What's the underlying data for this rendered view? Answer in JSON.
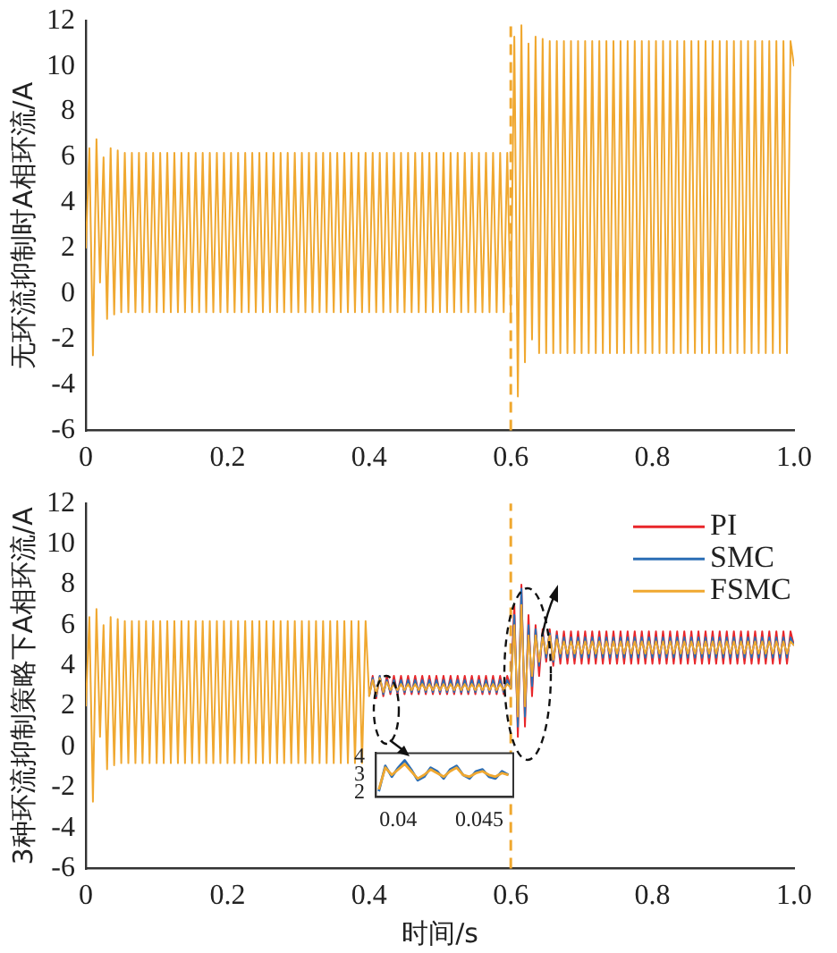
{
  "chart_data": [
    {
      "type": "line",
      "ylabel": "无环流抑制时A相环流/A",
      "xlim": [
        0,
        1
      ],
      "ylim": [
        -6,
        12
      ],
      "xticks": [
        0,
        0.2,
        0.4,
        0.6,
        0.8,
        {
          "value": 1,
          "label": "1.0"
        }
      ],
      "yticks": [
        -6,
        -4,
        -2,
        0,
        2,
        4,
        6,
        8,
        10,
        12
      ],
      "grid": false,
      "marker": "none",
      "line_style": "solid",
      "ref_lines": [
        {
          "axis": "x",
          "value": 0.6,
          "color": "#f0a830",
          "line_style": "dashed"
        }
      ],
      "x": [
        0,
        0.005,
        0.01,
        0.015,
        0.02,
        0.025,
        0.03,
        0.035,
        0.04,
        0.045,
        0.05,
        0.055,
        0.06,
        0.065,
        0.07,
        0.075,
        0.08,
        0.085,
        0.09,
        0.095,
        0.1,
        0.105,
        0.11,
        0.115,
        0.12,
        0.125,
        0.13,
        0.135,
        0.14,
        0.145,
        0.15,
        0.155,
        0.16,
        0.165,
        0.17,
        0.175,
        0.18,
        0.185,
        0.19,
        0.195,
        0.2,
        0.205,
        0.21,
        0.215,
        0.22,
        0.225,
        0.23,
        0.235,
        0.24,
        0.245,
        0.25,
        0.255,
        0.26,
        0.265,
        0.27,
        0.275,
        0.28,
        0.285,
        0.29,
        0.295,
        0.3,
        0.305,
        0.31,
        0.315,
        0.32,
        0.325,
        0.33,
        0.335,
        0.34,
        0.345,
        0.35,
        0.355,
        0.36,
        0.365,
        0.37,
        0.375,
        0.38,
        0.385,
        0.39,
        0.395,
        0.4,
        0.405,
        0.41,
        0.415,
        0.42,
        0.425,
        0.43,
        0.435,
        0.44,
        0.445,
        0.45,
        0.455,
        0.46,
        0.465,
        0.47,
        0.475,
        0.48,
        0.485,
        0.49,
        0.495,
        0.5,
        0.505,
        0.51,
        0.515,
        0.52,
        0.525,
        0.53,
        0.535,
        0.54,
        0.545,
        0.55,
        0.555,
        0.56,
        0.565,
        0.57,
        0.575,
        0.58,
        0.585,
        0.59,
        0.595,
        0.6,
        0.605,
        0.61,
        0.615,
        0.62,
        0.625,
        0.63,
        0.635,
        0.64,
        0.645,
        0.65,
        0.655,
        0.66,
        0.665,
        0.67,
        0.675,
        0.68,
        0.685,
        0.69,
        0.695,
        0.7,
        0.705,
        0.71,
        0.715,
        0.72,
        0.725,
        0.73,
        0.735,
        0.74,
        0.745,
        0.75,
        0.755,
        0.76,
        0.765,
        0.77,
        0.775,
        0.78,
        0.785,
        0.79,
        0.795,
        0.8,
        0.805,
        0.81,
        0.815,
        0.82,
        0.825,
        0.83,
        0.835,
        0.84,
        0.845,
        0.85,
        0.855,
        0.86,
        0.865,
        0.87,
        0.875,
        0.88,
        0.885,
        0.89,
        0.895,
        0.9,
        0.905,
        0.91,
        0.915,
        0.92,
        0.925,
        0.93,
        0.935,
        0.94,
        0.945,
        0.95,
        0.955,
        0.96,
        0.965,
        0.97,
        0.975,
        0.98,
        0.985,
        0.99,
        0.995,
        1
      ],
      "series": [
        {
          "color": "#f0a830",
          "values": [
            2.0,
            6.4,
            -2.7,
            6.8,
            0.5,
            6.0,
            -1.1,
            6.4,
            -0.9,
            6.3,
            -0.8,
            6.2,
            -0.8,
            6.2,
            -0.8,
            6.2,
            -0.8,
            6.2,
            -0.8,
            6.2,
            -0.8,
            6.2,
            -0.8,
            6.2,
            -0.8,
            6.2,
            -0.8,
            6.2,
            -0.8,
            6.2,
            -0.8,
            6.2,
            -0.8,
            6.2,
            -0.8,
            6.2,
            -0.8,
            6.2,
            -0.8,
            6.2,
            -0.8,
            6.2,
            -0.8,
            6.2,
            -0.8,
            6.2,
            -0.8,
            6.2,
            -0.8,
            6.2,
            -0.8,
            6.2,
            -0.8,
            6.2,
            -0.8,
            6.2,
            -0.8,
            6.2,
            -0.8,
            6.2,
            -0.8,
            6.2,
            -0.8,
            6.2,
            -0.8,
            6.2,
            -0.8,
            6.2,
            -0.8,
            6.2,
            -0.8,
            6.2,
            -0.8,
            6.2,
            -0.8,
            6.2,
            -0.8,
            6.2,
            -0.8,
            6.2,
            -0.8,
            6.2,
            -0.8,
            6.2,
            -0.8,
            6.2,
            -0.8,
            6.2,
            -0.8,
            6.2,
            -0.8,
            6.2,
            -0.8,
            6.2,
            -0.8,
            6.2,
            -0.8,
            6.2,
            -0.8,
            6.2,
            -0.8,
            6.2,
            -0.8,
            6.2,
            -0.8,
            6.2,
            -0.8,
            6.2,
            -0.8,
            6.2,
            -0.8,
            6.2,
            -0.8,
            6.2,
            -0.8,
            6.2,
            -0.8,
            6.2,
            -0.8,
            6.2,
            -0.8,
            11.3,
            -4.5,
            11.8,
            -3.0,
            11.0,
            -2.0,
            11.3,
            -2.6,
            11.2,
            -2.6,
            11.1,
            -2.6,
            11.1,
            -2.6,
            11.1,
            -2.6,
            11.1,
            -2.6,
            11.1,
            -2.6,
            11.1,
            -2.6,
            11.1,
            -2.6,
            11.1,
            -2.6,
            11.1,
            -2.6,
            11.1,
            -2.6,
            11.1,
            -2.6,
            11.1,
            -2.6,
            11.1,
            -2.6,
            11.1,
            -2.6,
            11.1,
            -2.6,
            11.1,
            -2.6,
            11.1,
            -2.6,
            11.1,
            -2.6,
            11.1,
            -2.6,
            11.1,
            -2.6,
            11.1,
            -2.6,
            11.1,
            -2.6,
            11.1,
            -2.6,
            11.1,
            -2.6,
            11.1,
            -2.6,
            11.1,
            -2.6,
            11.1,
            -2.6,
            11.1,
            -2.6,
            11.1,
            -2.6,
            11.1,
            -2.6,
            11.1,
            -2.6,
            11.1,
            -2.6,
            11.1,
            -2.6,
            11.1,
            -2.6,
            11.1,
            10.0
          ]
        }
      ]
    },
    {
      "type": "line",
      "xlabel": "时间/s",
      "ylabel": "3种环流抑制策略下A相环流/A",
      "xlim": [
        0,
        1
      ],
      "ylim": [
        -6,
        12
      ],
      "xticks": [
        0,
        0.2,
        0.4,
        0.6,
        0.8,
        {
          "value": 1,
          "label": "1.0"
        }
      ],
      "yticks": [
        -6,
        -4,
        -2,
        0,
        2,
        4,
        6,
        8,
        10,
        12
      ],
      "grid": false,
      "marker": "none",
      "line_style": "solid",
      "legend": "top right",
      "ref_lines": [
        {
          "axis": "x",
          "value": 0.6,
          "color": "#f0a830",
          "line_style": "dashed"
        }
      ],
      "x": [
        0,
        0.005,
        0.01,
        0.015,
        0.02,
        0.025,
        0.03,
        0.035,
        0.04,
        0.045,
        0.05,
        0.055,
        0.06,
        0.065,
        0.07,
        0.075,
        0.08,
        0.085,
        0.09,
        0.095,
        0.1,
        0.105,
        0.11,
        0.115,
        0.12,
        0.125,
        0.13,
        0.135,
        0.14,
        0.145,
        0.15,
        0.155,
        0.16,
        0.165,
        0.17,
        0.175,
        0.18,
        0.185,
        0.19,
        0.195,
        0.2,
        0.205,
        0.21,
        0.215,
        0.22,
        0.225,
        0.23,
        0.235,
        0.24,
        0.245,
        0.25,
        0.255,
        0.26,
        0.265,
        0.27,
        0.275,
        0.28,
        0.285,
        0.29,
        0.295,
        0.3,
        0.305,
        0.31,
        0.315,
        0.32,
        0.325,
        0.33,
        0.335,
        0.34,
        0.345,
        0.35,
        0.355,
        0.36,
        0.365,
        0.37,
        0.375,
        0.38,
        0.385,
        0.39,
        0.395,
        0.4,
        0.405,
        0.41,
        0.415,
        0.42,
        0.425,
        0.43,
        0.435,
        0.44,
        0.445,
        0.45,
        0.455,
        0.46,
        0.465,
        0.47,
        0.475,
        0.48,
        0.485,
        0.49,
        0.495,
        0.5,
        0.505,
        0.51,
        0.515,
        0.52,
        0.525,
        0.53,
        0.535,
        0.54,
        0.545,
        0.55,
        0.555,
        0.56,
        0.565,
        0.57,
        0.575,
        0.58,
        0.585,
        0.59,
        0.595,
        0.6,
        0.605,
        0.61,
        0.615,
        0.62,
        0.625,
        0.63,
        0.635,
        0.64,
        0.645,
        0.65,
        0.655,
        0.66,
        0.665,
        0.67,
        0.675,
        0.68,
        0.685,
        0.69,
        0.695,
        0.7,
        0.705,
        0.71,
        0.715,
        0.72,
        0.725,
        0.73,
        0.735,
        0.74,
        0.745,
        0.75,
        0.755,
        0.76,
        0.765,
        0.77,
        0.775,
        0.78,
        0.785,
        0.79,
        0.795,
        0.8,
        0.805,
        0.81,
        0.815,
        0.82,
        0.825,
        0.83,
        0.835,
        0.84,
        0.845,
        0.85,
        0.855,
        0.86,
        0.865,
        0.87,
        0.875,
        0.88,
        0.885,
        0.89,
        0.895,
        0.9,
        0.905,
        0.91,
        0.915,
        0.92,
        0.925,
        0.93,
        0.935,
        0.94,
        0.945,
        0.95,
        0.955,
        0.96,
        0.965,
        0.97,
        0.975,
        0.98,
        0.985,
        0.99,
        0.995,
        1
      ],
      "series": [
        {
          "name": "PI",
          "color": "#e8262a",
          "values": [
            null,
            null,
            null,
            null,
            null,
            null,
            null,
            null,
            null,
            null,
            null,
            null,
            null,
            null,
            null,
            null,
            null,
            null,
            null,
            null,
            null,
            null,
            null,
            null,
            null,
            null,
            null,
            null,
            null,
            null,
            null,
            null,
            null,
            null,
            null,
            null,
            null,
            null,
            null,
            null,
            null,
            null,
            null,
            null,
            null,
            null,
            null,
            null,
            null,
            null,
            null,
            null,
            null,
            null,
            null,
            null,
            null,
            null,
            null,
            null,
            null,
            null,
            null,
            null,
            null,
            null,
            null,
            null,
            null,
            null,
            null,
            null,
            null,
            null,
            null,
            null,
            null,
            null,
            null,
            null,
            2.5,
            3.5,
            2.4,
            3.5,
            2.5,
            3.5,
            2.6,
            3.5,
            2.6,
            3.5,
            2.6,
            3.5,
            2.6,
            3.5,
            2.6,
            3.5,
            2.6,
            3.5,
            2.6,
            3.5,
            2.6,
            3.5,
            2.6,
            3.5,
            2.6,
            3.5,
            2.6,
            3.5,
            2.6,
            3.5,
            2.6,
            3.5,
            2.6,
            3.5,
            2.6,
            3.5,
            2.6,
            3.5,
            2.6,
            3.5,
            2.9,
            7.0,
            0.5,
            8.0,
            1.0,
            6.5,
            2.5,
            6.0,
            3.5,
            5.8,
            4.2,
            5.8,
            4.0,
            5.7,
            4.1,
            5.7,
            4.1,
            5.7,
            4.1,
            5.7,
            4.1,
            5.7,
            4.1,
            5.7,
            4.1,
            5.7,
            4.1,
            5.7,
            4.1,
            5.7,
            4.1,
            5.7,
            4.1,
            5.7,
            4.1,
            5.7,
            4.1,
            5.7,
            4.1,
            5.7,
            4.1,
            5.7,
            4.1,
            5.7,
            4.1,
            5.7,
            4.1,
            5.7,
            4.1,
            5.7,
            4.1,
            5.7,
            4.1,
            5.7,
            4.1,
            5.7,
            4.1,
            5.7,
            4.1,
            5.7,
            4.1,
            5.7,
            4.1,
            5.7,
            4.1,
            5.7,
            4.1,
            5.7,
            4.1,
            5.7,
            4.1,
            5.7,
            4.1,
            5.7,
            4.1,
            5.7,
            4.1,
            5.7,
            4.1,
            5.7,
            5.0
          ]
        },
        {
          "name": "SMC",
          "color": "#2a6db5",
          "values": [
            null,
            null,
            null,
            null,
            null,
            null,
            null,
            null,
            null,
            null,
            null,
            null,
            null,
            null,
            null,
            null,
            null,
            null,
            null,
            null,
            null,
            null,
            null,
            null,
            null,
            null,
            null,
            null,
            null,
            null,
            null,
            null,
            null,
            null,
            null,
            null,
            null,
            null,
            null,
            null,
            null,
            null,
            null,
            null,
            null,
            null,
            null,
            null,
            null,
            null,
            null,
            null,
            null,
            null,
            null,
            null,
            null,
            null,
            null,
            null,
            null,
            null,
            null,
            null,
            null,
            null,
            null,
            null,
            null,
            null,
            null,
            null,
            null,
            null,
            null,
            null,
            null,
            null,
            null,
            null,
            2.5,
            3.4,
            2.5,
            3.5,
            2.6,
            3.3,
            2.7,
            3.3,
            2.7,
            3.3,
            2.7,
            3.3,
            2.7,
            3.3,
            2.7,
            3.3,
            2.7,
            3.3,
            2.7,
            3.3,
            2.7,
            3.3,
            2.7,
            3.3,
            2.7,
            3.3,
            2.7,
            3.3,
            2.7,
            3.3,
            2.7,
            3.3,
            2.7,
            3.3,
            2.7,
            3.3,
            2.7,
            3.3,
            2.7,
            3.3,
            2.9,
            6.5,
            1.0,
            7.8,
            1.5,
            6.0,
            3.0,
            5.8,
            4.0,
            5.6,
            4.4,
            5.6,
            4.2,
            5.5,
            4.4,
            5.4,
            4.4,
            5.4,
            4.4,
            5.4,
            4.4,
            5.4,
            4.4,
            5.4,
            4.4,
            5.4,
            4.4,
            5.4,
            4.4,
            5.4,
            4.4,
            5.4,
            4.4,
            5.4,
            4.4,
            5.4,
            4.4,
            5.4,
            4.4,
            5.4,
            4.4,
            5.4,
            4.4,
            5.4,
            4.4,
            5.4,
            4.4,
            5.4,
            4.4,
            5.4,
            4.4,
            5.4,
            4.4,
            5.4,
            4.4,
            5.4,
            4.4,
            5.4,
            4.4,
            5.4,
            4.4,
            5.4,
            4.4,
            5.4,
            4.4,
            5.4,
            4.4,
            5.4,
            4.4,
            5.4,
            4.4,
            5.4,
            4.4,
            5.4,
            4.4,
            5.4,
            4.4,
            5.4,
            4.4,
            5.4,
            5.0
          ]
        },
        {
          "name": "FSMC",
          "color": "#f0a830",
          "values": [
            2.0,
            6.4,
            -2.7,
            6.8,
            0.5,
            6.0,
            -1.1,
            6.4,
            -0.9,
            6.3,
            -0.8,
            6.2,
            -0.8,
            6.2,
            -0.8,
            6.2,
            -0.8,
            6.2,
            -0.8,
            6.2,
            -0.8,
            6.2,
            -0.8,
            6.2,
            -0.8,
            6.2,
            -0.8,
            6.2,
            -0.8,
            6.2,
            -0.8,
            6.2,
            -0.8,
            6.2,
            -0.8,
            6.2,
            -0.8,
            6.2,
            -0.8,
            6.2,
            -0.8,
            6.2,
            -0.8,
            6.2,
            -0.8,
            6.2,
            -0.8,
            6.2,
            -0.8,
            6.2,
            -0.8,
            6.2,
            -0.8,
            6.2,
            -0.8,
            6.2,
            -0.8,
            6.2,
            -0.8,
            6.2,
            -0.8,
            6.2,
            -0.8,
            6.2,
            -0.8,
            6.2,
            -0.8,
            6.2,
            -0.8,
            6.2,
            -0.8,
            6.2,
            -0.8,
            6.2,
            -0.8,
            6.2,
            -0.8,
            6.2,
            -0.8,
            6.2,
            2.5,
            3.3,
            2.6,
            3.4,
            2.7,
            3.2,
            2.8,
            3.1,
            2.8,
            3.1,
            2.8,
            3.1,
            2.8,
            3.1,
            2.8,
            3.1,
            2.8,
            3.1,
            2.8,
            3.1,
            2.8,
            3.1,
            2.8,
            3.1,
            2.8,
            3.1,
            2.8,
            3.1,
            2.8,
            3.1,
            2.8,
            3.1,
            2.8,
            3.1,
            2.8,
            3.1,
            2.8,
            3.1,
            2.8,
            3.1,
            2.9,
            6.0,
            1.5,
            7.0,
            2.0,
            5.5,
            3.5,
            5.5,
            4.2,
            5.4,
            4.6,
            5.5,
            4.3,
            5.3,
            4.6,
            5.2,
            4.6,
            5.2,
            4.6,
            5.2,
            4.6,
            5.2,
            4.6,
            5.2,
            4.6,
            5.2,
            4.6,
            5.2,
            4.6,
            5.2,
            4.6,
            5.2,
            4.6,
            5.2,
            4.6,
            5.2,
            4.6,
            5.2,
            4.6,
            5.2,
            4.6,
            5.2,
            4.6,
            5.2,
            4.6,
            5.2,
            4.6,
            5.2,
            4.6,
            5.2,
            4.6,
            5.2,
            4.6,
            5.2,
            4.6,
            5.2,
            4.6,
            5.2,
            4.6,
            5.2,
            4.6,
            5.2,
            4.6,
            5.2,
            4.6,
            5.2,
            4.6,
            5.2,
            4.6,
            5.2,
            4.6,
            5.2,
            4.6,
            5.2,
            4.6,
            5.2,
            4.6,
            5.2,
            4.6,
            5.2,
            5.0
          ]
        }
      ]
    },
    {
      "type": "line",
      "xlim": [
        0.0386,
        0.0471
      ],
      "ylim": [
        1.8,
        4.2
      ],
      "xticks": [
        0.04,
        0.045
      ],
      "yticks": [
        2,
        3,
        4
      ],
      "grid": false,
      "marker": "none",
      "line_style": "solid",
      "x": [
        0.0388,
        0.0392,
        0.0396,
        0.04,
        0.0404,
        0.0408,
        0.0412,
        0.0416,
        0.042,
        0.0424,
        0.0428,
        0.0432,
        0.0436,
        0.044,
        0.0444,
        0.0448,
        0.0452,
        0.0456,
        0.046,
        0.0464,
        0.0468
      ],
      "series": [
        {
          "color": "#2a6db5",
          "values": [
            2.1,
            3.5,
            2.9,
            3.4,
            3.8,
            3.3,
            2.7,
            2.9,
            3.4,
            3.2,
            2.8,
            3.3,
            3.5,
            3.0,
            2.8,
            3.2,
            3.3,
            2.9,
            2.8,
            3.2,
            3.0
          ]
        },
        {
          "color": "#f0a830",
          "values": [
            2.2,
            3.4,
            3.0,
            3.3,
            3.6,
            3.2,
            2.8,
            3.0,
            3.3,
            3.1,
            2.9,
            3.2,
            3.4,
            3.0,
            2.9,
            3.1,
            3.2,
            3.0,
            2.9,
            3.1,
            3.0
          ]
        }
      ]
    }
  ]
}
